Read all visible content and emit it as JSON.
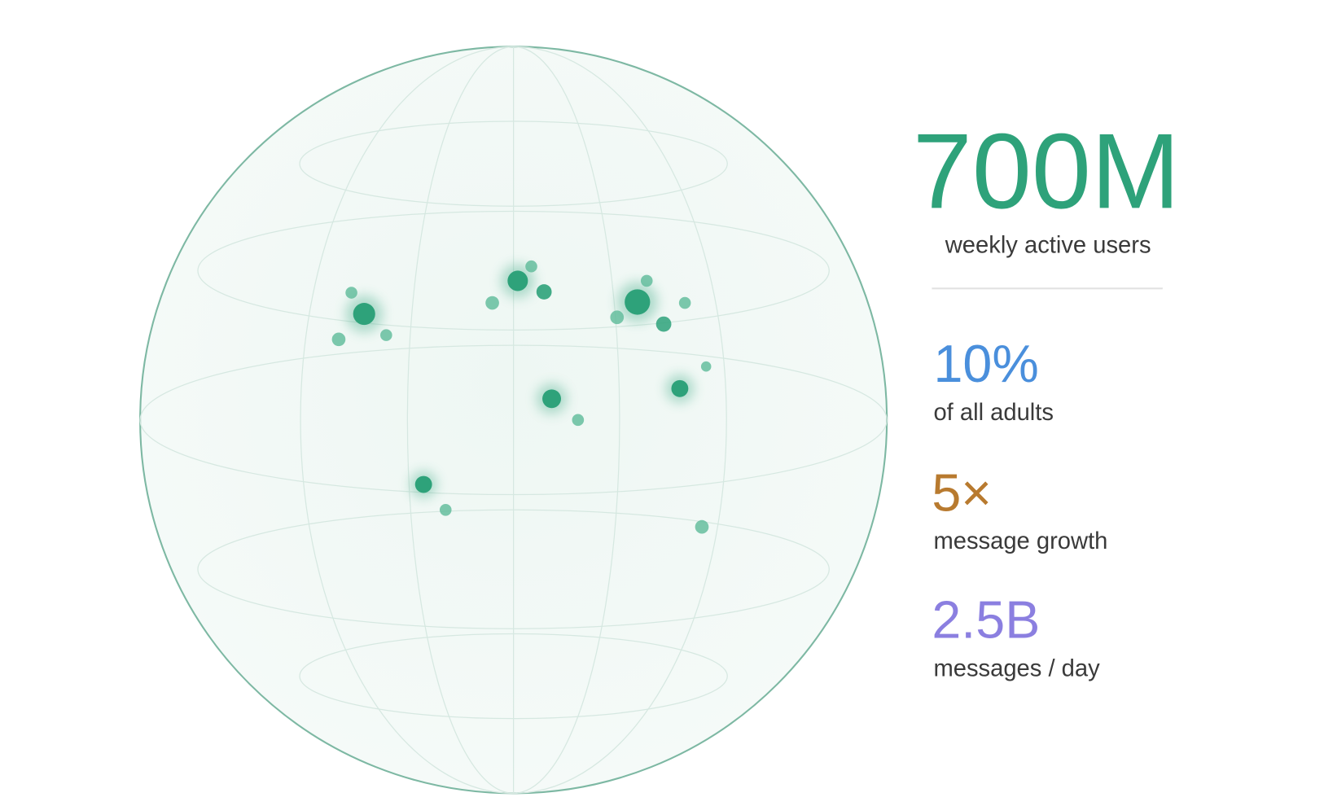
{
  "headline": {
    "value": "700M",
    "label": "weekly active users"
  },
  "stats": [
    {
      "value": "10%",
      "label": "of all adults"
    },
    {
      "value": "5×",
      "label": "message growth"
    },
    {
      "value": "2.5B",
      "label": "messages / day"
    }
  ]
}
